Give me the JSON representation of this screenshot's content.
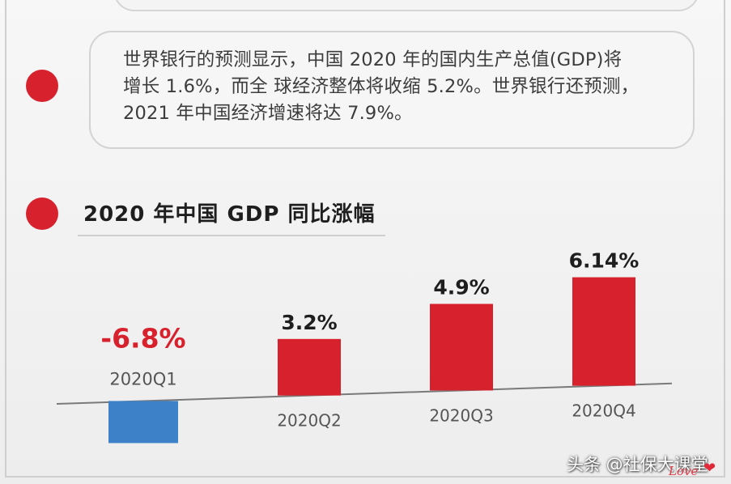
{
  "info_text": {
    "line1": "世界银行的预测显示，中国 2020 年的国内生产总值(GDP)将",
    "line2": "增长 1.6%，而全 球经济整体将收缩 5.2%。世界银行还预测，",
    "line3": "2021 年中国经济增速将达 7.9%。"
  },
  "section_title": "2020 年中国 GDP 同比涨幅",
  "colors": {
    "accent_red": "#d7222d",
    "negative_bar": "#3d82c8",
    "negative_label": "#d7222d",
    "positive_label": "#1e1e1e",
    "axis": "#7a7a7a"
  },
  "chart_data": {
    "type": "bar",
    "title": "2020 年中国 GDP 同比涨幅",
    "categories": [
      "2020Q1",
      "2020Q2",
      "2020Q3",
      "2020Q4"
    ],
    "values": [
      -6.8,
      3.2,
      4.9,
      6.14
    ],
    "value_labels": [
      "-6.8%",
      "3.2%",
      "4.9%",
      "6.14%"
    ],
    "xlabel": "",
    "ylabel": "",
    "grid": false,
    "legend": "none"
  },
  "watermark": {
    "text": "头条 @社保大课堂",
    "love_text": "Love"
  }
}
